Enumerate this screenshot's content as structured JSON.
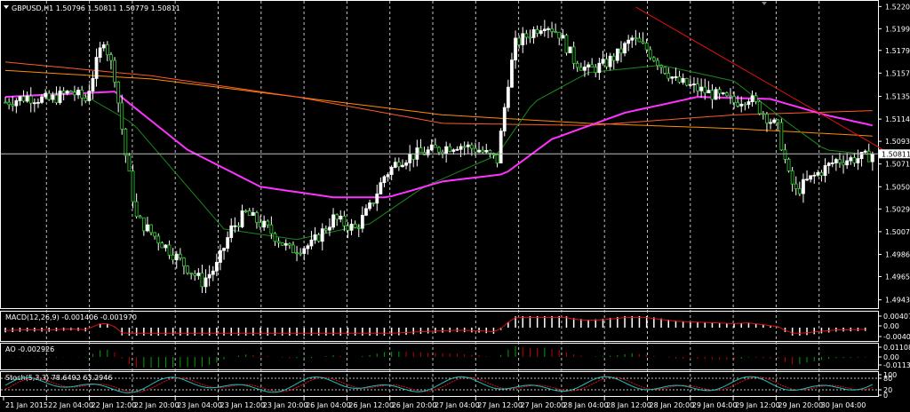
{
  "chart_data": [
    {
      "type": "candlestick",
      "title": "GBPUSD,H1  1.50796 1.50811 1.50779 1.50811",
      "ylim": [
        1.4936,
        1.5225
      ],
      "y_ticks": [
        "1.52205",
        "1.51995",
        "1.51790",
        "1.51575",
        "1.51355",
        "1.51140",
        "1.50930",
        "1.50715",
        "1.50500",
        "1.50290",
        "1.50075",
        "1.49860",
        "1.49650",
        "1.49430"
      ],
      "x_ticks": [
        "21 Jan 2015",
        "22 Jan 04:00",
        "22 Jan 12:00",
        "22 Jan 20:00",
        "23 Jan 04:00",
        "23 Jan 12:00",
        "23 Jan 20:00",
        "26 Jan 04:00",
        "26 Jan 12:00",
        "26 Jan 20:00",
        "27 Jan 04:00",
        "27 Jan 12:00",
        "27 Jan 20:00",
        "28 Jan 04:00",
        "28 Jan 12:00",
        "28 Jan 20:00",
        "29 Jan 04:00",
        "29 Jan 12:00",
        "29 Jan 20:00",
        "30 Jan 04:00"
      ],
      "current_price": "1.50811",
      "close_path": [
        [
          0,
          1.513
        ],
        [
          6,
          1.5135
        ],
        [
          12,
          1.5132
        ],
        [
          18,
          1.514
        ],
        [
          22,
          1.5132
        ],
        [
          27,
          1.519
        ],
        [
          30,
          1.5155
        ],
        [
          33,
          1.508
        ],
        [
          36,
          1.502
        ],
        [
          42,
          1.5
        ],
        [
          48,
          1.498
        ],
        [
          54,
          1.496
        ],
        [
          58,
          1.4975
        ],
        [
          62,
          1.501
        ],
        [
          66,
          1.5025
        ],
        [
          72,
          1.501
        ],
        [
          78,
          1.499
        ],
        [
          84,
          1.4995
        ],
        [
          90,
          1.502
        ],
        [
          96,
          1.501
        ],
        [
          100,
          1.503
        ],
        [
          104,
          1.506
        ],
        [
          108,
          1.5075
        ],
        [
          112,
          1.508
        ],
        [
          118,
          1.5085
        ],
        [
          124,
          1.509
        ],
        [
          130,
          1.5085
        ],
        [
          135,
          1.5075
        ],
        [
          138,
          1.515
        ],
        [
          140,
          1.5185
        ],
        [
          144,
          1.5195
        ],
        [
          148,
          1.5205
        ],
        [
          152,
          1.5195
        ],
        [
          156,
          1.517
        ],
        [
          160,
          1.516
        ],
        [
          164,
          1.5165
        ],
        [
          168,
          1.5175
        ],
        [
          172,
          1.519
        ],
        [
          176,
          1.518
        ],
        [
          180,
          1.5165
        ],
        [
          184,
          1.515
        ],
        [
          188,
          1.5145
        ],
        [
          192,
          1.514
        ],
        [
          196,
          1.5135
        ],
        [
          200,
          1.513
        ],
        [
          204,
          1.5135
        ],
        [
          208,
          1.512
        ],
        [
          212,
          1.5105
        ],
        [
          215,
          1.506
        ],
        [
          217,
          1.5045
        ],
        [
          220,
          1.5055
        ],
        [
          224,
          1.5065
        ],
        [
          228,
          1.5075
        ],
        [
          232,
          1.5076
        ],
        [
          236,
          1.5078
        ],
        [
          238,
          1.5081
        ]
      ],
      "ma_pink": [
        [
          0,
          1.5135
        ],
        [
          30,
          1.514
        ],
        [
          50,
          1.5085
        ],
        [
          70,
          1.505
        ],
        [
          90,
          1.504
        ],
        [
          105,
          1.504
        ],
        [
          120,
          1.5055
        ],
        [
          137,
          1.5062
        ],
        [
          150,
          1.5095
        ],
        [
          170,
          1.512
        ],
        [
          190,
          1.5135
        ],
        [
          210,
          1.5133
        ],
        [
          225,
          1.5118
        ],
        [
          238,
          1.5108
        ]
      ],
      "ma_orange_red": [
        [
          0,
          1.5168
        ],
        [
          40,
          1.5155
        ],
        [
          80,
          1.5135
        ],
        [
          120,
          1.511
        ],
        [
          160,
          1.5108
        ],
        [
          200,
          1.5118
        ],
        [
          238,
          1.5122
        ]
      ],
      "ma_orange": [
        [
          0,
          1.516
        ],
        [
          40,
          1.5152
        ],
        [
          80,
          1.5135
        ],
        [
          120,
          1.5118
        ],
        [
          160,
          1.511
        ],
        [
          200,
          1.5105
        ],
        [
          238,
          1.5098
        ]
      ],
      "ma_green": [
        [
          0,
          1.5135
        ],
        [
          20,
          1.514
        ],
        [
          35,
          1.511
        ],
        [
          50,
          1.505
        ],
        [
          60,
          1.501
        ],
        [
          80,
          1.5
        ],
        [
          100,
          1.5015
        ],
        [
          115,
          1.505
        ],
        [
          135,
          1.508
        ],
        [
          145,
          1.513
        ],
        [
          160,
          1.5158
        ],
        [
          180,
          1.5165
        ],
        [
          200,
          1.515
        ],
        [
          215,
          1.511
        ],
        [
          225,
          1.5085
        ],
        [
          238,
          1.508
        ]
      ],
      "trendline": [
        [
          173,
          1.522
        ],
        [
          238,
          1.5085
        ]
      ]
    },
    {
      "type": "bar",
      "title": "MACD(12,26,9) -0.001406 -0.001970",
      "y_ticks": [
        "0.004078",
        "0.00",
        "-0.004005"
      ]
    },
    {
      "type": "bar",
      "title": "AO -0.002926",
      "y_ticks": [
        "0.011088",
        "0.00",
        "-0.011336"
      ]
    },
    {
      "type": "line",
      "title": "Stoch(5,3,3) 78.6492 63.2946",
      "y_ticks": [
        "100",
        "80",
        "20",
        "0"
      ]
    }
  ]
}
